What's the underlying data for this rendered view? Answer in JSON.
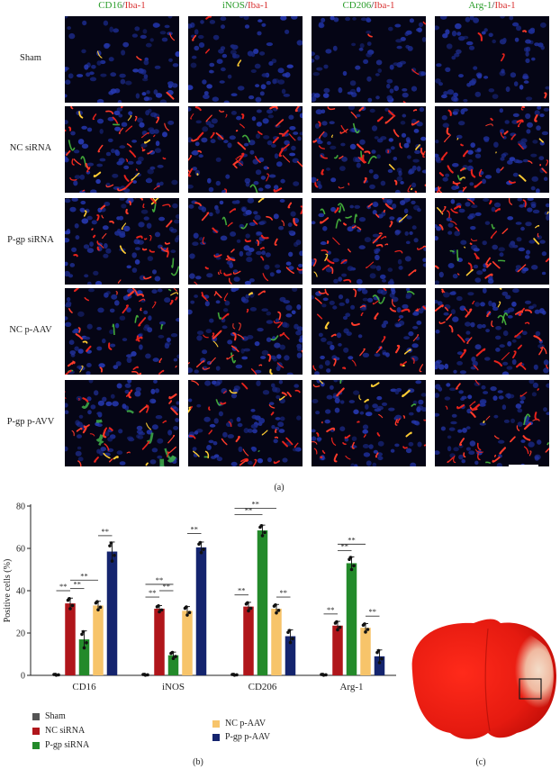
{
  "micrographs": {
    "columns": [
      {
        "green": "CD16",
        "sep": "/",
        "red": "Iba-1"
      },
      {
        "green": "iNOS",
        "sep": "/",
        "red": "Iba-1"
      },
      {
        "green": "CD206",
        "sep": "/",
        "red": "Iba-1"
      },
      {
        "green": "Arg-1",
        "sep": "/",
        "red": "Iba-1"
      }
    ],
    "rows": [
      "Sham",
      "NC siRNA",
      "P-gp siRNA",
      "NC p-AAV",
      "P-gp p-AVV"
    ],
    "caption": "(a)"
  },
  "chart_data": {
    "type": "bar",
    "categories": [
      "CD16",
      "iNOS",
      "CD206",
      "Arg-1"
    ],
    "ylabel": "Positive cells (%)",
    "ylim": [
      0,
      80
    ],
    "yticks": [
      0,
      20,
      40,
      60,
      80
    ],
    "series": [
      {
        "name": "Sham",
        "color": "#555555",
        "values": [
          0.3,
          0.3,
          0.3,
          0.3
        ],
        "errors": [
          0.2,
          0.2,
          0.2,
          0.2
        ]
      },
      {
        "name": "NC siRNA",
        "color": "#b0161b",
        "values": [
          34,
          31.5,
          32.5,
          23.5
        ],
        "errors": [
          2.5,
          1.5,
          2,
          2
        ]
      },
      {
        "name": "P-gp siRNA",
        "color": "#238a2a",
        "values": [
          17,
          9.5,
          68.5,
          53
        ],
        "errors": [
          4,
          1.5,
          2.5,
          3
        ]
      },
      {
        "name": "NC p-AAV",
        "color": "#f7c46a",
        "values": [
          33,
          30.5,
          31.5,
          22.5
        ],
        "errors": [
          2,
          2,
          2,
          2
        ]
      },
      {
        "name": "P-gp p-AAV",
        "color": "#14246e",
        "values": [
          58.5,
          60.5,
          18.5,
          9
        ],
        "errors": [
          4.5,
          2.5,
          3,
          3
        ]
      }
    ],
    "significance_label": "**",
    "caption": "(b)"
  },
  "brain": {
    "caption": "(c)"
  }
}
